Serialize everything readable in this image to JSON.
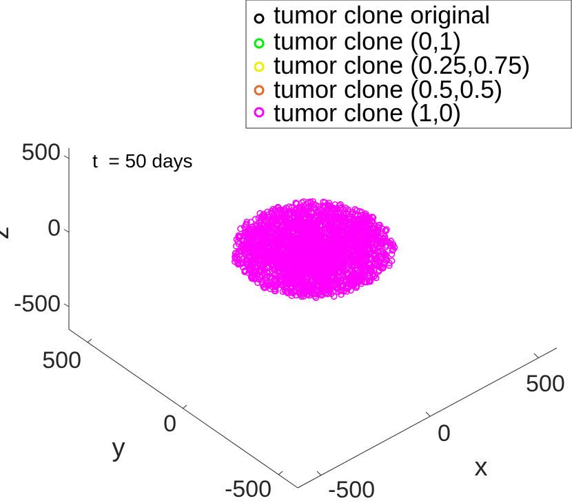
{
  "chart_data": {
    "type": "scatter",
    "annotation": "t  = 50 days",
    "xlabel": "x",
    "ylabel": "y",
    "zlabel": "z",
    "xlim": [
      -700,
      700
    ],
    "ylim": [
      -700,
      700
    ],
    "zlim": [
      -600,
      600
    ],
    "x_ticks": [
      "-500",
      "0",
      "500"
    ],
    "y_ticks": [
      "-500",
      "0",
      "500"
    ],
    "z_ticks": [
      "-500",
      "0",
      "500"
    ],
    "grid": false,
    "legend_position": "top-right",
    "series": [
      {
        "name": "tumor clone original",
        "color": "#000000",
        "marker": "circle-open",
        "count": 0
      },
      {
        "name": "tumor clone (0,1)",
        "color": "#00ee00",
        "marker": "circle-open",
        "count": 0
      },
      {
        "name": "tumor clone (0.25,0.75)",
        "color": "#eeee00",
        "marker": "circle-open",
        "count": 0
      },
      {
        "name": "tumor clone (0.5,0.5)",
        "color": "#e06a2c",
        "marker": "circle-open",
        "count": 0
      },
      {
        "name": "tumor clone (1,0)",
        "color": "#ff00ff",
        "marker": "circle-open",
        "cluster": {
          "center": [
            0,
            0,
            0
          ],
          "radius": 200
        }
      }
    ]
  }
}
